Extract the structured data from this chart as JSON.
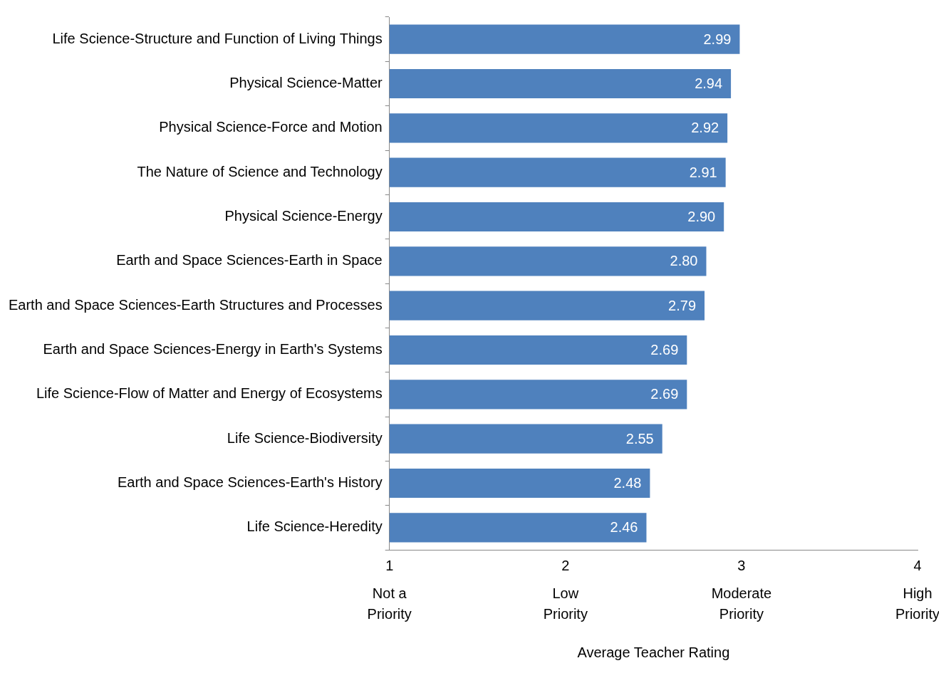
{
  "chart_data": {
    "type": "bar",
    "orientation": "horizontal",
    "xlabel": "Average Teacher Rating",
    "categories": [
      "Life Science-Structure and Function of Living Things",
      "Physical Science-Matter",
      "Physical Science-Force and Motion",
      "The Nature of Science and Technology",
      "Physical Science-Energy",
      "Earth and Space Sciences-Earth in Space",
      "Earth and Space Sciences-Earth Structures and Processes",
      "Earth and Space Sciences-Energy in Earth's Systems",
      "Life Science-Flow of Matter and Energy of Ecosystems",
      "Life Science-Biodiversity",
      "Earth and Space Sciences-Earth's History",
      "Life Science-Heredity"
    ],
    "values": [
      2.99,
      2.94,
      2.92,
      2.91,
      2.9,
      2.8,
      2.79,
      2.69,
      2.69,
      2.55,
      2.48,
      2.46
    ],
    "value_labels": [
      "2.99",
      "2.94",
      "2.92",
      "2.91",
      "2.90",
      "2.80",
      "2.79",
      "2.69",
      "2.69",
      "2.55",
      "2.48",
      "2.46"
    ],
    "color": "#4f81bd",
    "xlim": [
      1,
      4
    ],
    "xticks": [
      1,
      2,
      3,
      4
    ],
    "annotations": [
      "Not a Priority",
      "Low Priority",
      "Moderate Priority",
      "High Priority"
    ],
    "grid": false,
    "legend": false
  }
}
